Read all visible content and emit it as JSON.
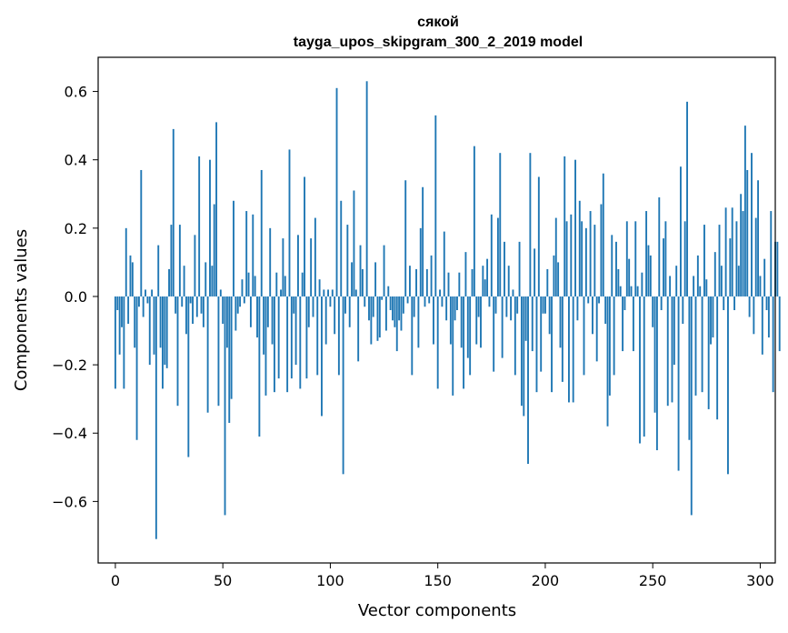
{
  "chart_data": {
    "type": "bar",
    "title": "сякой",
    "subtitle": "tayga_upos_skipgram_300_2_2019 model",
    "xlabel": "Vector components",
    "ylabel": "Components values",
    "xlim": [
      -8,
      307
    ],
    "ylim": [
      -0.78,
      0.7
    ],
    "xticks": [
      0,
      50,
      100,
      150,
      200,
      250,
      300
    ],
    "yticks": [
      -0.6,
      -0.4,
      -0.2,
      0.0,
      0.2,
      0.4,
      0.6
    ],
    "ytick_labels": [
      "−0.6",
      "−0.4",
      "−0.2",
      "0.0",
      "0.2",
      "0.4",
      "0.6"
    ],
    "grid": false,
    "bar_color": "#1f77b4",
    "x_start": 0,
    "values": [
      -0.27,
      -0.04,
      -0.17,
      -0.09,
      -0.27,
      0.2,
      -0.08,
      0.12,
      0.1,
      -0.15,
      -0.42,
      -0.03,
      0.37,
      -0.06,
      0.02,
      -0.02,
      -0.2,
      0.02,
      -0.17,
      -0.71,
      0.15,
      -0.15,
      -0.27,
      -0.2,
      -0.21,
      0.08,
      0.21,
      0.49,
      -0.05,
      -0.32,
      0.21,
      -0.03,
      0.09,
      -0.11,
      -0.47,
      -0.02,
      -0.08,
      0.18,
      -0.06,
      0.41,
      -0.05,
      -0.09,
      0.1,
      -0.34,
      0.4,
      0.09,
      0.27,
      0.51,
      -0.32,
      0.02,
      -0.08,
      -0.64,
      -0.15,
      -0.37,
      -0.3,
      0.28,
      -0.1,
      -0.05,
      -0.03,
      0.05,
      -0.02,
      0.25,
      0.07,
      -0.09,
      0.24,
      0.06,
      -0.12,
      -0.41,
      0.37,
      -0.17,
      -0.29,
      -0.09,
      0.2,
      -0.14,
      -0.28,
      0.07,
      -0.24,
      0.02,
      0.17,
      0.06,
      -0.28,
      0.43,
      -0.24,
      -0.05,
      -0.2,
      0.18,
      -0.27,
      0.07,
      0.35,
      -0.24,
      -0.09,
      0.17,
      -0.06,
      0.23,
      -0.23,
      0.05,
      -0.35,
      0.02,
      -0.14,
      0.02,
      -0.03,
      0.02,
      -0.11,
      0.61,
      -0.23,
      0.28,
      -0.52,
      -0.05,
      0.21,
      -0.09,
      0.1,
      0.31,
      0.02,
      -0.19,
      0.15,
      0.08,
      -0.03,
      0.63,
      -0.07,
      -0.14,
      -0.06,
      0.1,
      -0.13,
      -0.12,
      -0.01,
      0.15,
      -0.1,
      0.03,
      -0.04,
      -0.07,
      -0.09,
      -0.16,
      -0.07,
      -0.1,
      -0.05,
      0.34,
      -0.02,
      0.09,
      -0.23,
      -0.06,
      0.08,
      -0.15,
      0.2,
      0.32,
      -0.03,
      0.08,
      -0.02,
      0.12,
      -0.14,
      0.53,
      -0.27,
      0.02,
      -0.03,
      0.19,
      -0.07,
      0.07,
      -0.14,
      -0.29,
      -0.07,
      -0.04,
      0.07,
      -0.15,
      -0.27,
      0.13,
      -0.18,
      -0.23,
      0.08,
      0.44,
      -0.14,
      -0.06,
      -0.15,
      0.09,
      0.05,
      0.11,
      -0.03,
      0.24,
      -0.22,
      -0.05,
      0.23,
      0.42,
      -0.18,
      0.16,
      -0.06,
      0.09,
      -0.07,
      0.02,
      -0.23,
      -0.05,
      0.16,
      -0.32,
      -0.35,
      -0.13,
      -0.49,
      0.42,
      -0.16,
      0.14,
      -0.28,
      0.35,
      -0.22,
      -0.05,
      -0.05,
      0.08,
      -0.11,
      -0.28,
      0.12,
      0.23,
      0.1,
      -0.15,
      -0.25,
      0.41,
      0.22,
      -0.31,
      0.24,
      -0.31,
      0.4,
      -0.07,
      0.28,
      0.22,
      -0.23,
      0.2,
      -0.02,
      0.25,
      -0.11,
      0.21,
      -0.19,
      -0.02,
      0.27,
      0.36,
      -0.08,
      -0.38,
      -0.29,
      0.18,
      -0.23,
      0.16,
      0.08,
      0.03,
      -0.16,
      -0.04,
      0.22,
      0.11,
      0.03,
      -0.16,
      0.22,
      0.03,
      -0.43,
      0.07,
      -0.41,
      0.25,
      0.15,
      0.12,
      -0.09,
      -0.34,
      -0.45,
      0.29,
      -0.04,
      0.17,
      0.22,
      -0.32,
      0.06,
      -0.31,
      -0.2,
      0.09,
      -0.51,
      0.38,
      -0.08,
      0.22,
      0.57,
      -0.42,
      -0.64,
      0.06,
      -0.29,
      0.12,
      0.03,
      -0.28,
      0.21,
      0.05,
      -0.33,
      -0.14,
      -0.12,
      0.13,
      -0.36,
      0.21,
      0.09,
      -0.04,
      0.26,
      -0.52,
      0.17,
      0.26,
      -0.04,
      0.22,
      0.09,
      0.3,
      0.25,
      0.5,
      0.37,
      -0.06,
      0.42,
      -0.11,
      0.23,
      0.34,
      0.06,
      -0.17,
      0.11,
      -0.04,
      -0.12,
      0.25,
      -0.28,
      0.16,
      0.16,
      -0.16
    ]
  }
}
